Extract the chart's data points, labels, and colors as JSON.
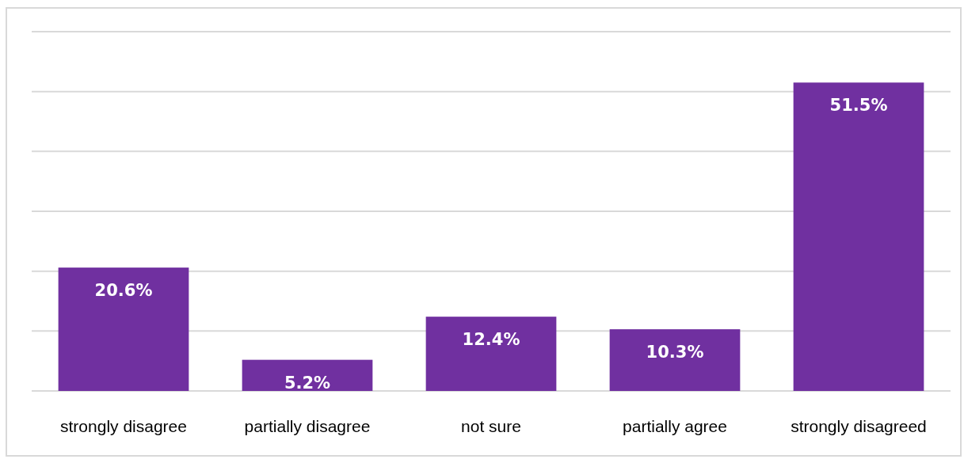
{
  "chart_data": {
    "type": "bar",
    "categories": [
      "strongly disagree",
      "partially disagree",
      "not sure",
      "partially agree",
      "strongly disagreed"
    ],
    "values": [
      20.6,
      5.2,
      12.4,
      10.3,
      51.5
    ],
    "value_labels": [
      "20.6%",
      "5.2%",
      "12.4%",
      "10.3%",
      "51.5%"
    ],
    "color": "#7030a0",
    "ylim": [
      0,
      60
    ],
    "yticks": [
      {
        "value": 0,
        "label": null
      },
      {
        "value": 10,
        "label": null
      },
      {
        "value": 20,
        "label": null
      },
      {
        "value": 30,
        "label": null
      },
      {
        "value": 40,
        "label": null
      },
      {
        "value": 50,
        "label": null
      },
      {
        "value": 60,
        "label": null
      }
    ],
    "tick_labels": "x",
    "grid": "y"
  }
}
